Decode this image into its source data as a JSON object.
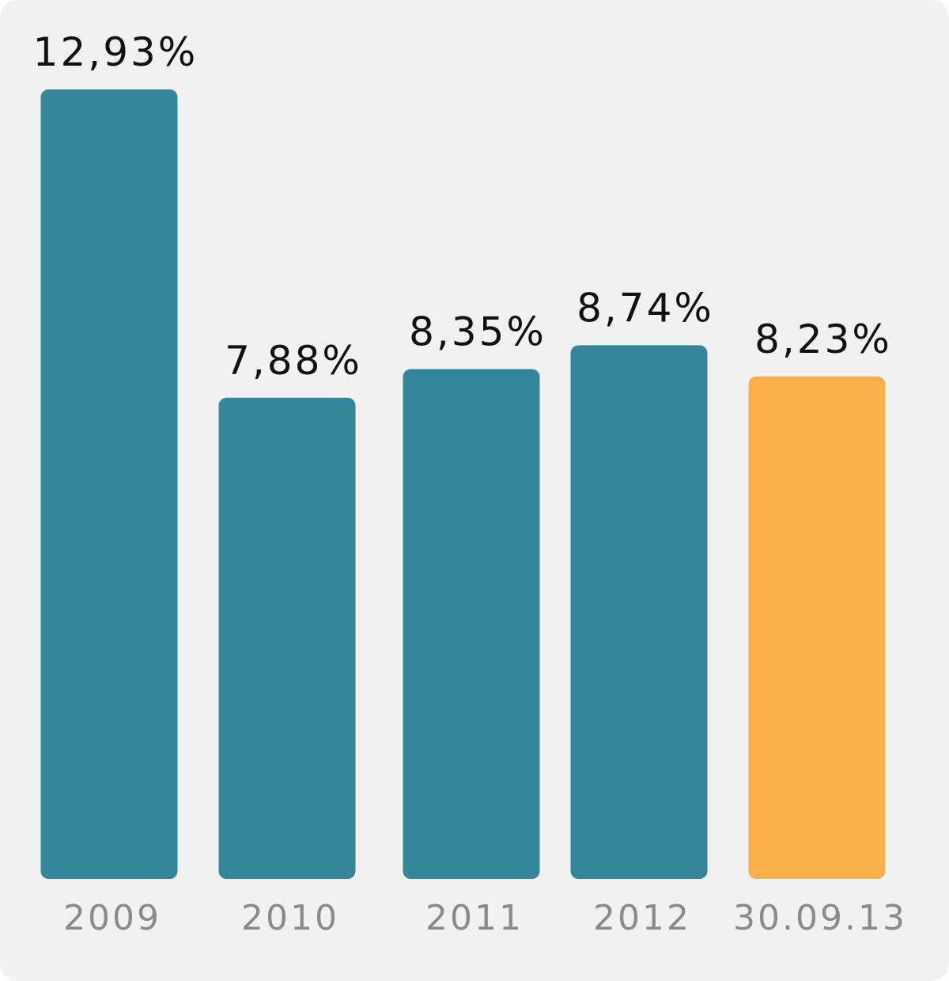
{
  "chart_data": {
    "type": "bar",
    "categories": [
      "2009",
      "2010",
      "2011",
      "2012",
      "30.09.13"
    ],
    "values": [
      12.93,
      7.88,
      8.35,
      8.74,
      8.23
    ],
    "value_labels": [
      "12,93%",
      "7,88%",
      "8,35%",
      "8,74%",
      "8,23%"
    ],
    "bar_colors": [
      "#36869b",
      "#36869b",
      "#36869b",
      "#36869b",
      "#f9af4a"
    ],
    "title": "",
    "xlabel": "",
    "ylabel": "",
    "ylim": [
      0,
      12.93
    ],
    "grid": false
  }
}
